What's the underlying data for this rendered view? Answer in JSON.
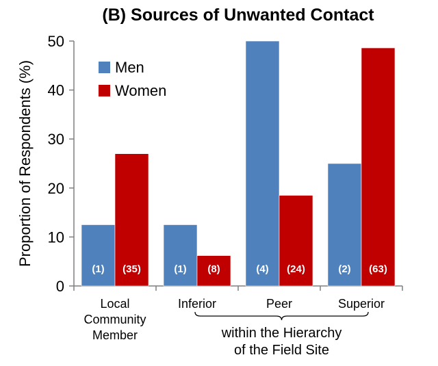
{
  "chart_data": {
    "type": "bar",
    "title": "(B) Sources of Unwanted Contact",
    "ylabel": "Proportion of Respondents (%)",
    "xlabel": "",
    "ylim": [
      0,
      50
    ],
    "yticks": [
      0,
      10,
      20,
      30,
      40,
      50
    ],
    "categories": [
      [
        "Local",
        "Community",
        "Member"
      ],
      [
        "Inferior"
      ],
      [
        "Peer"
      ],
      [
        "Superior"
      ]
    ],
    "series": [
      {
        "name": "Men",
        "color": "#4F81BD",
        "values": [
          12.5,
          12.5,
          50,
          25
        ],
        "counts": [
          "(1)",
          "(1)",
          "(4)",
          "(2)"
        ]
      },
      {
        "name": "Women",
        "color": "#C00000",
        "values": [
          27,
          6.2,
          18.5,
          48.6
        ],
        "counts": [
          "(35)",
          "(8)",
          "(24)",
          "(63)"
        ]
      }
    ],
    "group_annotation": {
      "lines": [
        "within the Hierarchy",
        "of the Field Site"
      ],
      "spans_categories": [
        1,
        3
      ]
    },
    "legend_position": "top-left",
    "grid": false
  }
}
